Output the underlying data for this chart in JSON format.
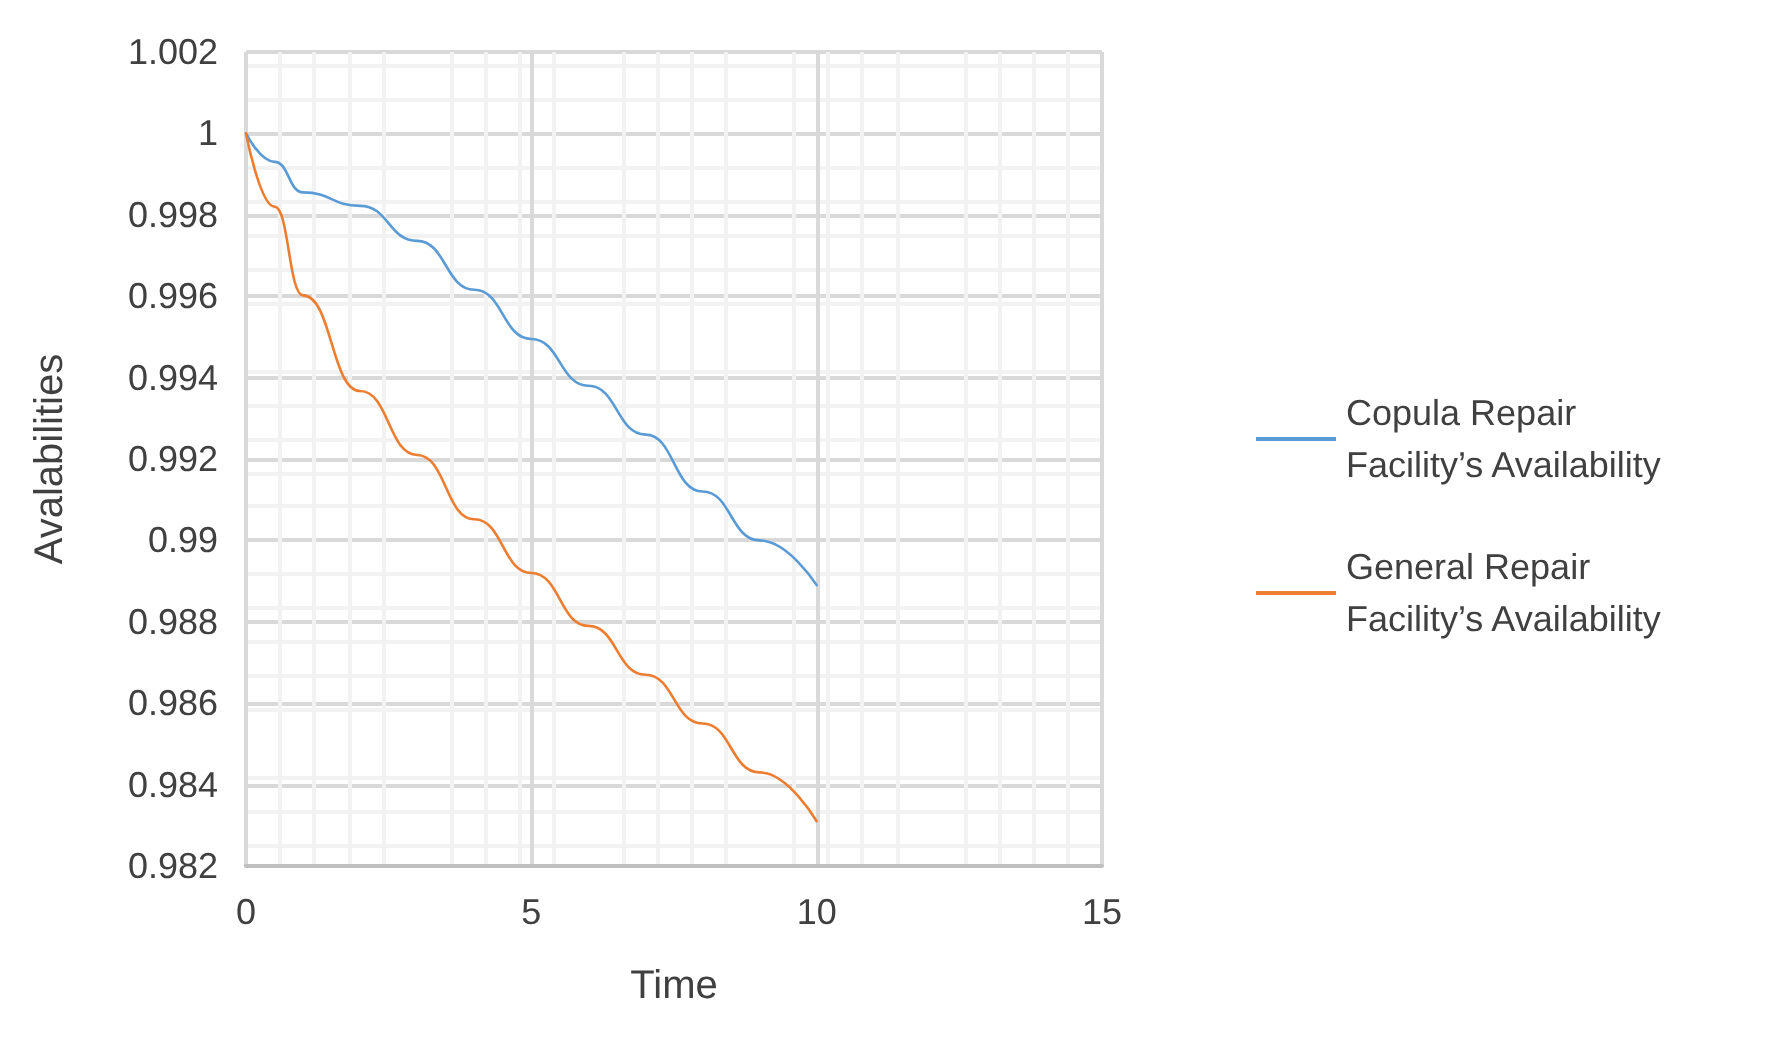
{
  "chart_data": {
    "type": "line",
    "xlabel": "Time",
    "ylabel": "Avalabilities",
    "xlim": [
      0,
      15
    ],
    "xticks": [
      0,
      5,
      10,
      15
    ],
    "ylim": [
      0.982,
      1.002
    ],
    "yticks": [
      0.982,
      0.984,
      0.986,
      0.988,
      0.99,
      0.992,
      0.994,
      0.996,
      0.998,
      1,
      1.002
    ],
    "grid": true,
    "legend": "right",
    "marker": "none",
    "line_style": "solid",
    "series": [
      {
        "name": "Copula Repair Facility’s Availability",
        "color": "#5b9bd5",
        "x": [
          0,
          0.5,
          1,
          2,
          3,
          4,
          5,
          6,
          7,
          8,
          9,
          10
        ],
        "values": [
          1,
          0.9993,
          0.99855,
          0.99822,
          0.99736,
          0.99616,
          0.99495,
          0.9938,
          0.9926,
          0.9912,
          0.99,
          0.9889
        ]
      },
      {
        "name": "General Repair Facility’s Availability",
        "color": "#ed7d31",
        "x": [
          0,
          0.5,
          1,
          2,
          3,
          4,
          5,
          6,
          7,
          8,
          9,
          10
        ],
        "values": [
          1,
          0.9982,
          0.99602,
          0.99367,
          0.9921,
          0.99052,
          0.9892,
          0.9879,
          0.9867,
          0.9855,
          0.9843,
          0.9831
        ]
      }
    ]
  }
}
